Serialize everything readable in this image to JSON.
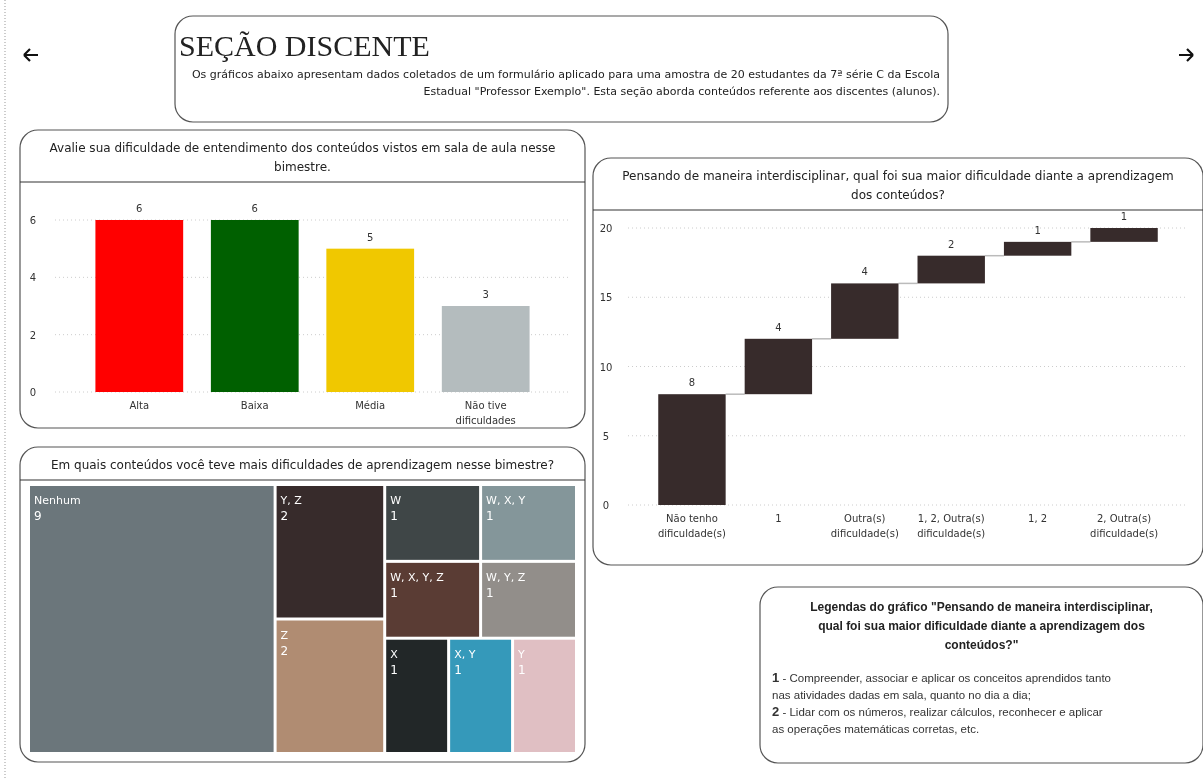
{
  "chart_data": [
    {
      "type": "other",
      "title": "SEÇÃO DISCENTE",
      "subtitle": "Os gráficos abaixo apresentam dados coletados de um formulário aplicado para uma amostra de 20 estudantes da 7ª série C da Escola Estadual \"Professor Exemplo\". Esta seção aborda conteúdos referente aos discentes (alunos)."
    },
    {
      "type": "bar",
      "title": "Avalie sua dificuldade de entendimento dos conteúdos vistos em sala de aula nesse bimestre.",
      "categories": [
        "Alta",
        "Baixa",
        "Média",
        "Não tive dificuldades"
      ],
      "values": [
        6,
        6,
        5,
        3
      ],
      "colors": [
        "#ff0000",
        "#006000",
        "#f0c800",
        "#b4bcbe"
      ],
      "ylim": [
        0,
        6
      ],
      "yticks": [
        0,
        2,
        4,
        6
      ],
      "grid": "y",
      "data_labels": true
    },
    {
      "type": "other",
      "title": "Em quais conteúdos você teve mais dificuldades de aprendizagem nesse bimestre?",
      "categories": [
        "Nenhum",
        "Y, Z",
        "Z",
        "W",
        "W, X, Y",
        "W, X, Y, Z",
        "W, Y, Z",
        "X",
        "X, Y",
        "Y"
      ],
      "values": [
        9,
        2,
        2,
        1,
        1,
        1,
        1,
        1,
        1,
        1
      ],
      "colors": [
        "#6b767b",
        "#372b2b",
        "#b08c72",
        "#3f4647",
        "#84969a",
        "#5a3c34",
        "#928e8a",
        "#222728",
        "#3599ba",
        "#e0bfc3"
      ],
      "data_labels": true
    },
    {
      "type": "bar",
      "title": "Pensando de maneira interdisciplinar, qual foi sua maior dificuldade diante a aprendizagem dos conteúdos?",
      "categories": [
        "Não tenho dificuldade(s)",
        "1",
        "Outra(s) dificuldade(s)",
        "1, 2, Outra(s) dificuldade(s)",
        "1, 2",
        "2, Outra(s) dificuldade(s)"
      ],
      "values": [
        8,
        4,
        4,
        2,
        1,
        1
      ],
      "base": [
        0,
        8,
        12,
        16,
        18,
        19
      ],
      "color": "#372b2b",
      "ylim": [
        0,
        20
      ],
      "yticks": [
        0,
        5,
        10,
        15,
        20
      ],
      "grid": "y",
      "data_labels": true
    },
    {
      "type": "other",
      "title": "Legendas do gráfico \"Pensando de maneira interdisciplinar, qual foi sua maior dificuldade diante a aprendizagem dos conteúdos?\"",
      "annotations": [
        "1 - Compreender, associar e aplicar os conceitos aprendidos tanto nas atividades dadas em sala, quanto no dia a dia;",
        "2 - Lidar com os números, realizar cálculos, reconhecer e aplicar as operações matemáticas corretas, etc."
      ]
    }
  ]
}
